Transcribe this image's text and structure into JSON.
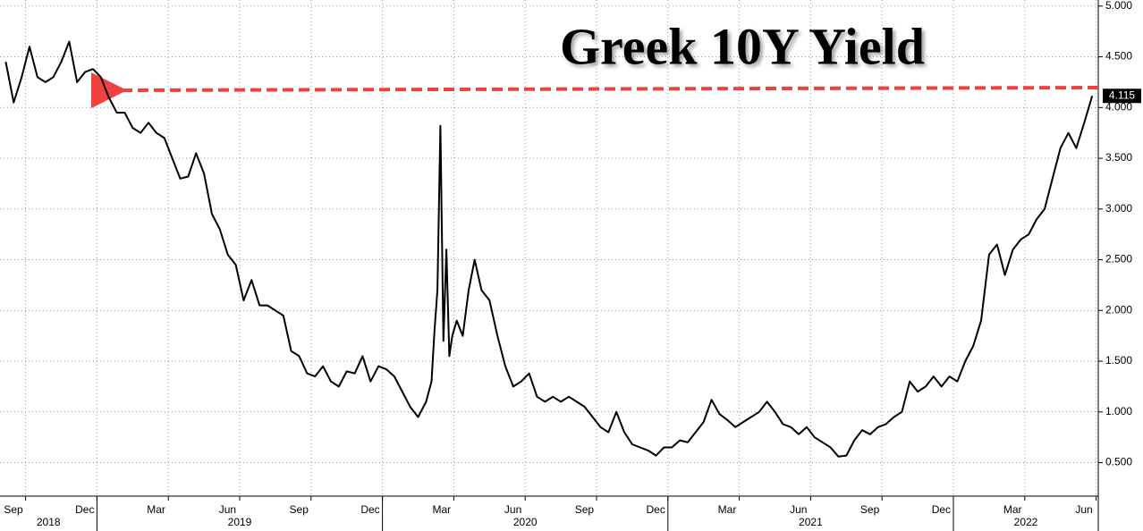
{
  "chart_data": {
    "type": "line",
    "title": "Greek 10Y Yield",
    "color": "#000000",
    "x": [
      "2018-09",
      "2018-09",
      "2018-09",
      "2018-10",
      "2018-10",
      "2018-10",
      "2018-11",
      "2018-11",
      "2018-11",
      "2018-12",
      "2018-12",
      "2018-12",
      "2019-01",
      "2019-01",
      "2019-01",
      "2019-02",
      "2019-02",
      "2019-02",
      "2019-03",
      "2019-03",
      "2019-03",
      "2019-04",
      "2019-04",
      "2019-04",
      "2019-05",
      "2019-05",
      "2019-05",
      "2019-06",
      "2019-06",
      "2019-06",
      "2019-07",
      "2019-07",
      "2019-07",
      "2019-08",
      "2019-08",
      "2019-08",
      "2019-09",
      "2019-09",
      "2019-09",
      "2019-10",
      "2019-10",
      "2019-10",
      "2019-11",
      "2019-11",
      "2019-11",
      "2019-12",
      "2019-12",
      "2019-12",
      "2020-01",
      "2020-01",
      "2020-01",
      "2020-02",
      "2020-02",
      "2020-02",
      "2020-03",
      "2020-03",
      "2020-03",
      "2020-03",
      "2020-03",
      "2020-03",
      "2020-03",
      "2020-03",
      "2020-04",
      "2020-04",
      "2020-04",
      "2020-04",
      "2020-05",
      "2020-05",
      "2020-05",
      "2020-06",
      "2020-06",
      "2020-06",
      "2020-07",
      "2020-07",
      "2020-07",
      "2020-08",
      "2020-08",
      "2020-08",
      "2020-09",
      "2020-09",
      "2020-09",
      "2020-10",
      "2020-10",
      "2020-10",
      "2020-11",
      "2020-11",
      "2020-11",
      "2020-12",
      "2020-12",
      "2020-12",
      "2021-01",
      "2021-01",
      "2021-01",
      "2021-02",
      "2021-02",
      "2021-02",
      "2021-03",
      "2021-03",
      "2021-03",
      "2021-04",
      "2021-04",
      "2021-04",
      "2021-05",
      "2021-05",
      "2021-05",
      "2021-06",
      "2021-06",
      "2021-06",
      "2021-07",
      "2021-07",
      "2021-07",
      "2021-08",
      "2021-08",
      "2021-08",
      "2021-09",
      "2021-09",
      "2021-09",
      "2021-10",
      "2021-10",
      "2021-10",
      "2021-11",
      "2021-11",
      "2021-11",
      "2021-12",
      "2021-12",
      "2021-12",
      "2022-01",
      "2022-01",
      "2022-01",
      "2022-02",
      "2022-02",
      "2022-02",
      "2022-03",
      "2022-03",
      "2022-03",
      "2022-04",
      "2022-04",
      "2022-04",
      "2022-05",
      "2022-05",
      "2022-05",
      "2022-06",
      "2022-06",
      "2022-06"
    ],
    "values": [
      4.45,
      4.05,
      4.3,
      4.6,
      4.3,
      4.25,
      4.3,
      4.45,
      4.65,
      4.25,
      4.35,
      4.38,
      4.3,
      4.1,
      3.95,
      3.95,
      3.8,
      3.75,
      3.85,
      3.75,
      3.7,
      3.5,
      3.3,
      3.32,
      3.55,
      3.35,
      2.95,
      2.8,
      2.55,
      2.45,
      2.1,
      2.3,
      2.05,
      2.05,
      2.0,
      1.95,
      1.6,
      1.55,
      1.38,
      1.35,
      1.45,
      1.3,
      1.25,
      1.4,
      1.38,
      1.55,
      1.3,
      1.45,
      1.42,
      1.35,
      1.2,
      1.05,
      0.95,
      1.1,
      1.3,
      1.8,
      2.2,
      3.82,
      1.7,
      2.6,
      1.55,
      1.75,
      1.9,
      1.75,
      2.2,
      2.5,
      2.2,
      2.1,
      1.75,
      1.45,
      1.25,
      1.3,
      1.38,
      1.15,
      1.1,
      1.15,
      1.1,
      1.15,
      1.1,
      1.05,
      0.95,
      0.85,
      0.8,
      1.0,
      0.8,
      0.68,
      0.65,
      0.62,
      0.57,
      0.65,
      0.65,
      0.72,
      0.7,
      0.8,
      0.9,
      1.12,
      0.98,
      0.92,
      0.85,
      0.9,
      0.95,
      1.0,
      1.1,
      1.0,
      0.88,
      0.85,
      0.78,
      0.85,
      0.75,
      0.7,
      0.65,
      0.56,
      0.57,
      0.72,
      0.82,
      0.78,
      0.85,
      0.88,
      0.95,
      1.0,
      1.3,
      1.2,
      1.25,
      1.35,
      1.25,
      1.35,
      1.3,
      1.5,
      1.65,
      1.9,
      2.55,
      2.65,
      2.35,
      2.6,
      2.7,
      2.75,
      2.9,
      3.0,
      3.3,
      3.6,
      3.75,
      3.6,
      3.85,
      4.115
    ],
    "current_value": 4.115,
    "xticks": [
      {
        "value": "2018-09",
        "label": "Sep"
      },
      {
        "value": "2018-12",
        "label": "Dec"
      },
      {
        "value": "2019-03",
        "label": "Mar"
      },
      {
        "value": "2019-06",
        "label": "Jun"
      },
      {
        "value": "2019-09",
        "label": "Sep"
      },
      {
        "value": "2019-12",
        "label": "Dec"
      },
      {
        "value": "2020-03",
        "label": "Mar"
      },
      {
        "value": "2020-06",
        "label": "Jun"
      },
      {
        "value": "2020-09",
        "label": "Sep"
      },
      {
        "value": "2020-12",
        "label": "Dec"
      },
      {
        "value": "2021-03",
        "label": "Mar"
      },
      {
        "value": "2021-06",
        "label": "Jun"
      },
      {
        "value": "2021-09",
        "label": "Sep"
      },
      {
        "value": "2021-12",
        "label": "Dec"
      },
      {
        "value": "2022-03",
        "label": "Mar"
      },
      {
        "value": "2022-06",
        "label": "Jun"
      }
    ],
    "years": [
      "2018",
      "2019",
      "2020",
      "2021",
      "2022"
    ],
    "ylim": [
      0.17,
      5.06
    ],
    "yticks": [
      {
        "value": 0.5,
        "label": "0.500"
      },
      {
        "value": 1,
        "label": "1.000"
      },
      {
        "value": 1.5,
        "label": "1.500"
      },
      {
        "value": 2,
        "label": "2.000"
      },
      {
        "value": 2.5,
        "label": "2.500"
      },
      {
        "value": 3,
        "label": "3.000"
      },
      {
        "value": 3.5,
        "label": "3.500"
      },
      {
        "value": 4,
        "label": "4.000"
      },
      {
        "value": 4.5,
        "label": "4.500"
      },
      {
        "value": 5,
        "label": "5.000"
      }
    ],
    "grid": true
  }
}
